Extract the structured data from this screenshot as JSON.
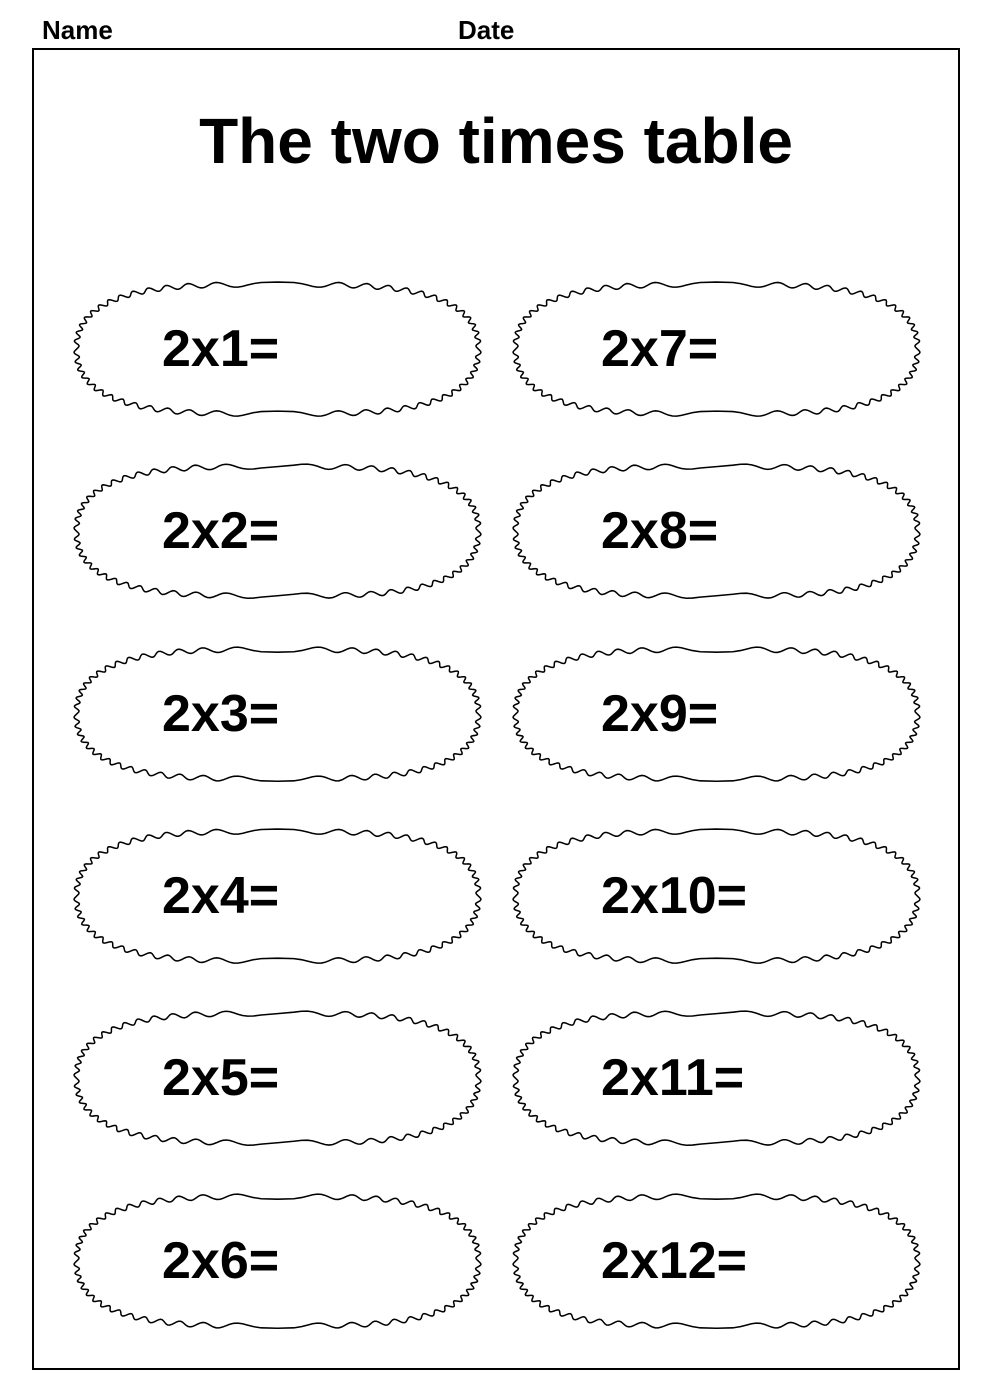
{
  "header": {
    "name_label": "Name",
    "date_label": "Date"
  },
  "title": "The two times table",
  "style": {
    "background_color": "#ffffff",
    "border_color": "#000000",
    "text_color": "#000000",
    "title_fontsize": 64,
    "problem_fontsize": 52,
    "header_fontsize": 26,
    "font_family_body": "Comic Sans MS",
    "font_family_header": "Arial",
    "bubble_stroke_width": 1.5,
    "columns": 2,
    "rows": 6
  },
  "problems": [
    {
      "text": "2x1="
    },
    {
      "text": "2x2="
    },
    {
      "text": "2x3="
    },
    {
      "text": "2x4="
    },
    {
      "text": "2x5="
    },
    {
      "text": "2x6="
    },
    {
      "text": "2x7="
    },
    {
      "text": "2x8="
    },
    {
      "text": "2x9="
    },
    {
      "text": "2x10="
    },
    {
      "text": "2x11="
    },
    {
      "text": "2x12="
    }
  ]
}
